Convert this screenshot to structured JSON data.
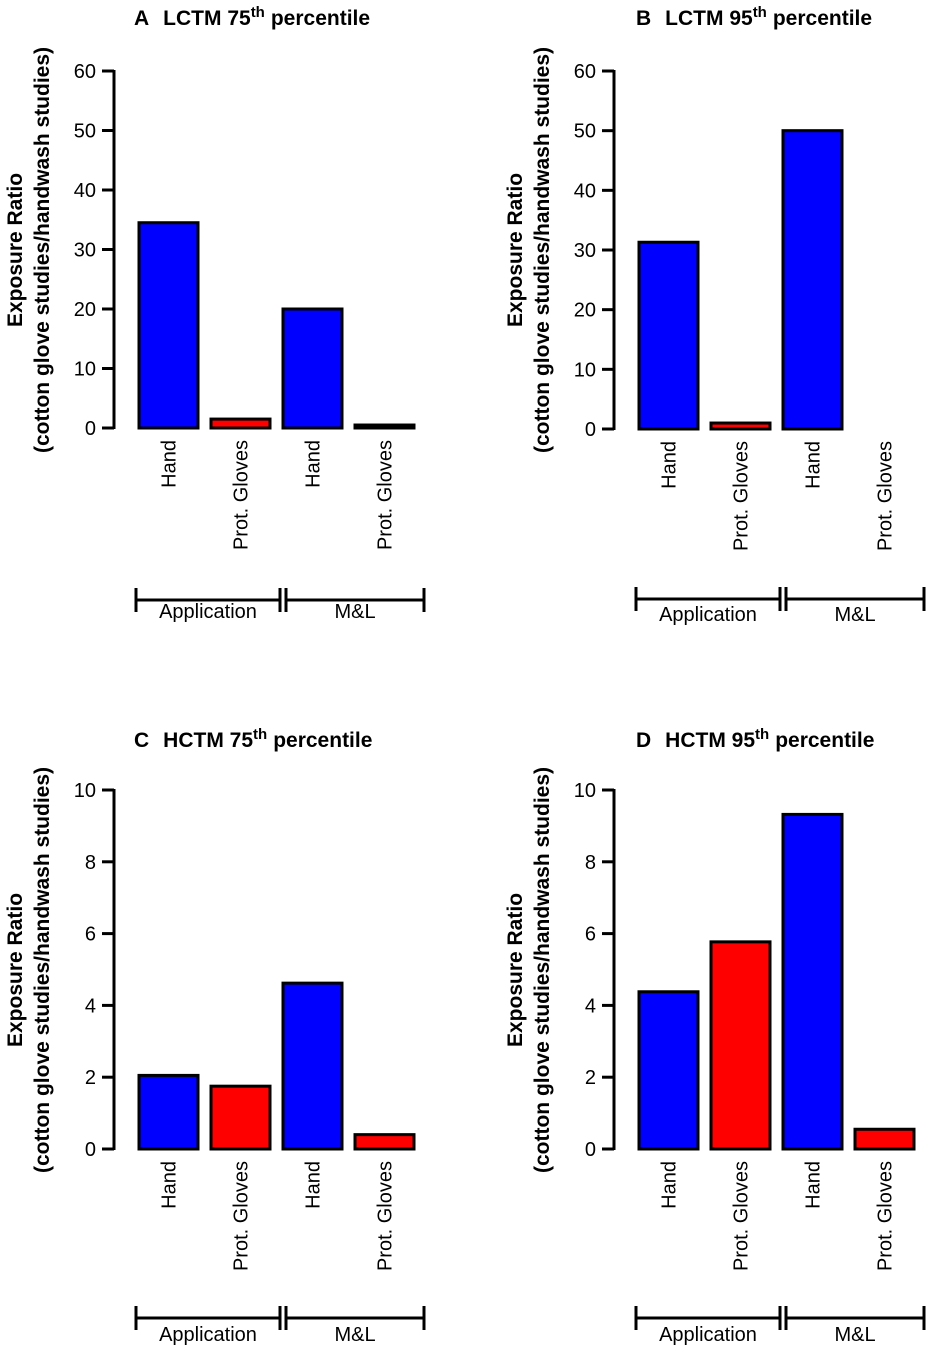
{
  "chart_data": [
    {
      "panel": "A",
      "type": "bar",
      "title": "LCTM 75",
      "title_sup": "th",
      "title_suffix": "percentile",
      "ylabel_line1": "Exposure Ratio",
      "ylabel_line2": "(cotton glove studies/handwash studies)",
      "ylim": [
        0,
        60
      ],
      "yticks": [
        "0",
        "10",
        "20",
        "30",
        "40",
        "50",
        "60"
      ],
      "ytick_values": [
        0,
        10,
        20,
        30,
        40,
        50,
        60
      ],
      "categories": [
        "Hand",
        "Prot. Gloves",
        "Hand",
        "Prot. Gloves"
      ],
      "values": [
        34.5,
        1.5,
        20.0,
        0.5
      ],
      "colors": [
        "#0000ff",
        "#ff0000",
        "#0000ff",
        "#ff0000"
      ],
      "groups": [
        {
          "label": "Application",
          "span": [
            0,
            1
          ]
        },
        {
          "label": "M&L",
          "span": [
            2,
            3
          ]
        }
      ]
    },
    {
      "panel": "B",
      "type": "bar",
      "title": "LCTM 95",
      "title_sup": "th",
      "title_suffix": "percentile",
      "ylabel_line1": "Exposure Ratio",
      "ylabel_line2": "(cotton glove studies/handwash studies)",
      "ylim": [
        0,
        60
      ],
      "yticks": [
        "0",
        "10",
        "20",
        "30",
        "40",
        "50",
        "60"
      ],
      "ytick_values": [
        0,
        10,
        20,
        30,
        40,
        50,
        60
      ],
      "categories": [
        "Hand",
        "Prot. Gloves",
        "Hand",
        "Prot. Gloves"
      ],
      "values": [
        31.3,
        1.0,
        50.0,
        0
      ],
      "colors": [
        "#0000ff",
        "#ff0000",
        "#0000ff",
        "#ff0000"
      ],
      "groups": [
        {
          "label": "Application",
          "span": [
            0,
            1
          ]
        },
        {
          "label": "M&L",
          "span": [
            2,
            3
          ]
        }
      ]
    },
    {
      "panel": "C",
      "type": "bar",
      "title": "HCTM 75",
      "title_sup": "th",
      "title_suffix": "percentile",
      "ylabel_line1": "Exposure Ratio",
      "ylabel_line2": "(cotton glove studies/handwash studies)",
      "ylim": [
        0,
        10
      ],
      "yticks": [
        "0",
        "2",
        "4",
        "6",
        "8",
        "10"
      ],
      "ytick_values": [
        0,
        2,
        4,
        6,
        8,
        10
      ],
      "categories": [
        "Hand",
        "Prot. Gloves",
        "Hand",
        "Prot. Gloves"
      ],
      "values": [
        2.05,
        1.75,
        4.62,
        0.4
      ],
      "colors": [
        "#0000ff",
        "#ff0000",
        "#0000ff",
        "#ff0000"
      ],
      "groups": [
        {
          "label": "Application",
          "span": [
            0,
            1
          ]
        },
        {
          "label": "M&L",
          "span": [
            2,
            3
          ]
        }
      ]
    },
    {
      "panel": "D",
      "type": "bar",
      "title": "HCTM 95",
      "title_sup": "th",
      "title_suffix": "percentile",
      "ylabel_line1": "Exposure Ratio",
      "ylabel_line2": "(cotton glove studies/handwash studies)",
      "ylim": [
        0,
        10
      ],
      "yticks": [
        "0",
        "2",
        "4",
        "6",
        "8",
        "10"
      ],
      "ytick_values": [
        0,
        2,
        4,
        6,
        8,
        10
      ],
      "categories": [
        "Hand",
        "Prot. Gloves",
        "Hand",
        "Prot. Gloves"
      ],
      "values": [
        4.38,
        5.77,
        9.32,
        0.55
      ],
      "colors": [
        "#0000ff",
        "#ff0000",
        "#0000ff",
        "#ff0000"
      ],
      "groups": [
        {
          "label": "Application",
          "span": [
            0,
            1
          ]
        },
        {
          "label": "M&L",
          "span": [
            2,
            3
          ]
        }
      ]
    }
  ]
}
